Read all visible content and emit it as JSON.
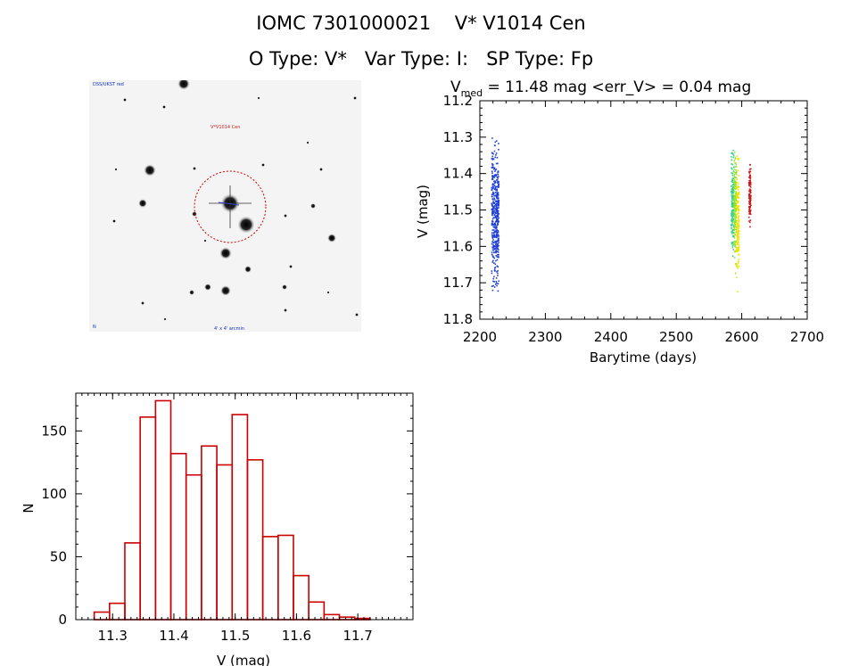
{
  "header": {
    "line1": "IOMC 7301000021    V* V1014 Cen",
    "line2": "O Type: V*   Var Type: I:   SP Type: Fp"
  },
  "finder": {
    "label_top_left": "DSS/UKST red",
    "target_label": "V*V1014 Cen",
    "label_bottom": "4' x 4' arcmin",
    "label_bottom_left": "N",
    "target_circle_color": "#cc0000"
  },
  "chart_data": [
    {
      "type": "scatter",
      "title_prefix": "V",
      "title_subscript": "med",
      "title_rest": " = 11.48 mag <err_V> = 0.04 mag",
      "xlabel": "Barytime (days)",
      "ylabel": "V (mag)",
      "xlim": [
        2200,
        2700
      ],
      "ylim": [
        11.8,
        11.2
      ],
      "y_inverted": true,
      "x_ticks": [
        2200,
        2300,
        2400,
        2500,
        2600,
        2700
      ],
      "x_tick_labels": [
        "2200",
        "2300",
        "2400",
        "2500",
        "2600",
        "2700"
      ],
      "y_ticks": [
        11.2,
        11.3,
        11.4,
        11.5,
        11.6,
        11.7,
        11.8
      ],
      "y_tick_labels": [
        "11.2",
        "11.3",
        "11.4",
        "11.5",
        "11.6",
        "11.7",
        "11.8"
      ],
      "groups": [
        {
          "x_range": [
            2217,
            2228
          ],
          "y_range": [
            11.28,
            11.74
          ],
          "color": "#1f3fd6"
        },
        {
          "x_range": [
            2583,
            2587
          ],
          "y_range": [
            11.29,
            11.66
          ],
          "color": "#33d48a"
        },
        {
          "x_range": [
            2587,
            2591
          ],
          "y_range": [
            11.3,
            11.68
          ],
          "color": "#9be02a"
        },
        {
          "x_range": [
            2591,
            2595
          ],
          "y_range": [
            11.33,
            11.74
          ],
          "color": "#f2e600"
        },
        {
          "x_range": [
            2610,
            2613
          ],
          "y_range": [
            11.35,
            11.56
          ],
          "color": "#cc1a1a"
        }
      ]
    },
    {
      "type": "bar",
      "xlabel": "V (mag)",
      "ylabel": "N",
      "bar_color": "#cc0000",
      "bin_edges": [
        11.27,
        11.295,
        11.32,
        11.345,
        11.37,
        11.395,
        11.42,
        11.445,
        11.47,
        11.495,
        11.52,
        11.545,
        11.57,
        11.595,
        11.62,
        11.645,
        11.67,
        11.695,
        11.72,
        11.745,
        11.77
      ],
      "values": [
        6,
        13,
        61,
        161,
        174,
        132,
        115,
        138,
        123,
        163,
        127,
        66,
        67,
        35,
        14,
        4,
        2,
        1,
        0,
        0
      ],
      "xlim": [
        11.24,
        11.79
      ],
      "ylim": [
        0,
        180
      ],
      "x_ticks": [
        11.3,
        11.4,
        11.5,
        11.6,
        11.7
      ],
      "x_tick_labels": [
        "11.3",
        "11.4",
        "11.5",
        "11.6",
        "11.7"
      ],
      "y_ticks": [
        0,
        50,
        100,
        150
      ],
      "y_tick_labels": [
        "0",
        "50",
        "100",
        "150"
      ]
    }
  ]
}
